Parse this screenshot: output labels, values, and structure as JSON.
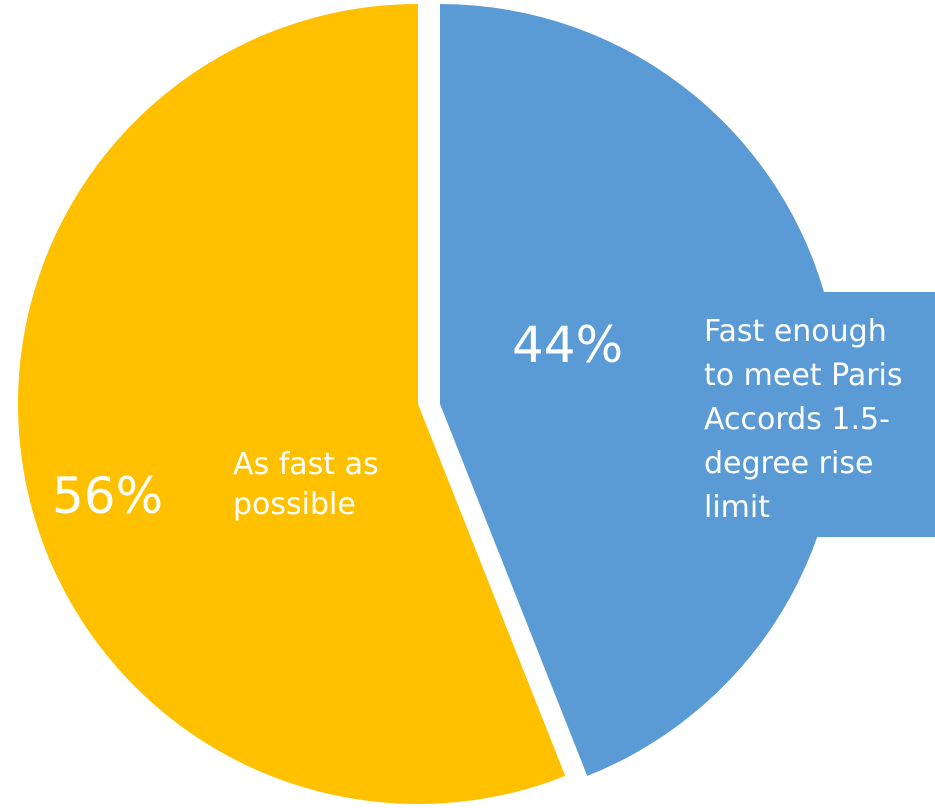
{
  "chart_data": {
    "type": "pie",
    "title": "",
    "slices": [
      {
        "label": "Fast enough to meet Paris Accords 1.5-degree rise limit",
        "label_lines": [
          "Fast enough",
          "to meet Paris",
          "Accords 1.5-",
          "degree rise",
          "limit"
        ],
        "value": 44,
        "value_label": "44%",
        "color": "#5B9BD5",
        "exploded": true
      },
      {
        "label": "As fast as possible",
        "label_lines": [
          "As fast as",
          "possible"
        ],
        "value": 56,
        "value_label": "56%",
        "color": "#FFC000",
        "exploded": false
      }
    ],
    "start_angle_deg": 0,
    "direction": "clockwise",
    "legend": "none",
    "data_labels": "inside"
  }
}
